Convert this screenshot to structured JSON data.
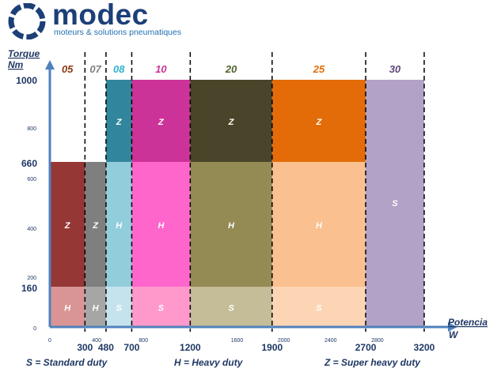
{
  "brand": {
    "name": "modec",
    "tagline": "moteurs & solutions pneumatiques"
  },
  "chart_data": {
    "type": "bar",
    "xlabel": [
      "Potencia",
      "W"
    ],
    "ylabel": [
      "Torque",
      "Nm"
    ],
    "xlim": [
      0,
      3200
    ],
    "ylim": [
      0,
      1000
    ],
    "y_minor_ticks": [
      "0",
      "200",
      "400",
      "600",
      "800"
    ],
    "y_major_ticks": [
      "160",
      "660",
      "1000"
    ],
    "x_minor_ticks": [
      "0",
      "400",
      "800",
      "1600",
      "2000",
      "2400",
      "2800"
    ],
    "x_major_ticks": [
      "300",
      "480",
      "700",
      "1200",
      "1900",
      "2700",
      "3200"
    ],
    "series_boundaries": [
      0,
      300,
      480,
      700,
      1200,
      1900,
      2700,
      3200
    ],
    "ranges": [
      {
        "name": "05",
        "x0": 0,
        "x1": 300,
        "max_torque": 660,
        "title_color": "#8b3a12",
        "segments": [
          {
            "label": "H",
            "y0": 0,
            "y1": 160,
            "color": "#d99595"
          },
          {
            "label": "Z",
            "y0": 160,
            "y1": 660,
            "color": "#953735"
          }
        ]
      },
      {
        "name": "07",
        "x0": 300,
        "x1": 480,
        "max_torque": 660,
        "title_color": "#7f7f7f",
        "segments": [
          {
            "label": "H",
            "y0": 0,
            "y1": 160,
            "color": "#a6a6a6"
          },
          {
            "label": "Z",
            "y0": 160,
            "y1": 660,
            "color": "#7f7f7f"
          }
        ]
      },
      {
        "name": "08",
        "x0": 480,
        "x1": 700,
        "max_torque": 1000,
        "title_color": "#31b2d0",
        "segments": [
          {
            "label": "S",
            "y0": 0,
            "y1": 160,
            "color": "#c5e3ec"
          },
          {
            "label": "H",
            "y0": 160,
            "y1": 660,
            "color": "#92cddc"
          },
          {
            "label": "Z",
            "y0": 660,
            "y1": 1000,
            "color": "#31859c"
          }
        ]
      },
      {
        "name": "10",
        "x0": 700,
        "x1": 1200,
        "max_torque": 1000,
        "title_color": "#cc3399",
        "segments": [
          {
            "label": "S",
            "y0": 0,
            "y1": 160,
            "color": "#ff99cc"
          },
          {
            "label": "H",
            "y0": 160,
            "y1": 660,
            "color": "#ff66cc"
          },
          {
            "label": "Z",
            "y0": 660,
            "y1": 1000,
            "color": "#cc3399"
          }
        ]
      },
      {
        "name": "20",
        "x0": 1200,
        "x1": 1900,
        "max_torque": 1000,
        "title_color": "#4f6228",
        "segments": [
          {
            "label": "S",
            "y0": 0,
            "y1": 160,
            "color": "#c4bd97"
          },
          {
            "label": "H",
            "y0": 160,
            "y1": 660,
            "color": "#948a54"
          },
          {
            "label": "Z",
            "y0": 660,
            "y1": 1000,
            "color": "#4a452a"
          }
        ]
      },
      {
        "name": "25",
        "x0": 1900,
        "x1": 2700,
        "max_torque": 1000,
        "title_color": "#e36c09",
        "segments": [
          {
            "label": "S",
            "y0": 0,
            "y1": 160,
            "color": "#fcd5b5"
          },
          {
            "label": "H",
            "y0": 160,
            "y1": 660,
            "color": "#fac090"
          },
          {
            "label": "Z",
            "y0": 660,
            "y1": 1000,
            "color": "#e36c09"
          }
        ]
      },
      {
        "name": "30",
        "x0": 2700,
        "x1": 3200,
        "max_torque": 1000,
        "title_color": "#5f497a",
        "segments": [
          {
            "label": "S",
            "y0": 0,
            "y1": 1000,
            "color": "#b3a2c7"
          }
        ]
      }
    ],
    "legend": [
      {
        "text": "S = Standard duty"
      },
      {
        "text": "H = Heavy duty"
      },
      {
        "text": "Z = Super heavy duty"
      }
    ],
    "axis_color": "#4f81bd"
  }
}
